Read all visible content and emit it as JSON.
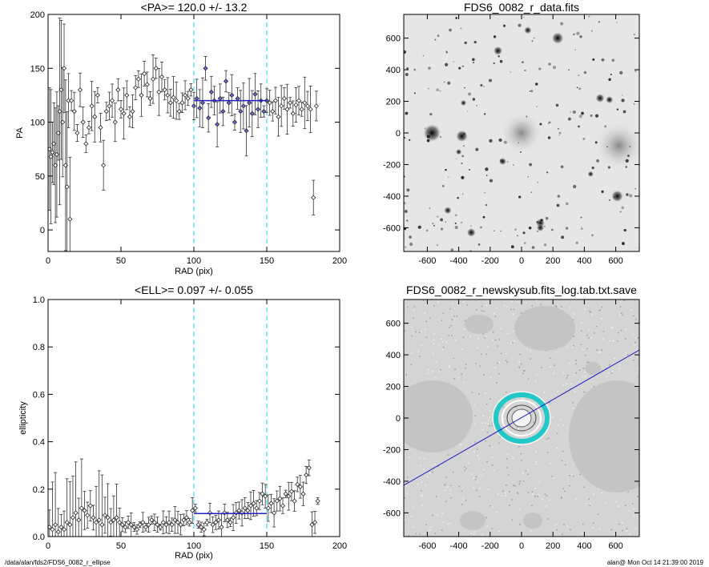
{
  "chart_data": [
    {
      "type": "scatter",
      "title": "<PA>= 120.0 +/-  13.2",
      "xlabel": "RAD (pix)",
      "ylabel": "PA",
      "xlim": [
        0,
        200
      ],
      "ylim": [
        -20,
        200
      ],
      "xticks": [
        0,
        50,
        100,
        150,
        200
      ],
      "yticks": [
        0,
        50,
        100,
        150,
        200
      ],
      "vlines": [
        100,
        150
      ],
      "fit_line": {
        "x": [
          100,
          150
        ],
        "y": 120.0
      },
      "series": [
        {
          "x": [
            1,
            2,
            3,
            4,
            5,
            6,
            7,
            8,
            9,
            10,
            11,
            12,
            13,
            14,
            15
          ],
          "y": [
            75,
            68,
            72,
            80,
            60,
            70,
            90,
            110,
            130,
            100,
            150,
            60,
            40,
            120,
            10
          ]
        },
        {
          "x": [
            16,
            18,
            20,
            22,
            24,
            26,
            28,
            30,
            32,
            34,
            36,
            38,
            40,
            42,
            44,
            46,
            48,
            50,
            52,
            54,
            56,
            58,
            60,
            62,
            64,
            66,
            68,
            70,
            72,
            74,
            76,
            78,
            80,
            82,
            84,
            86,
            88,
            90,
            92,
            94,
            96,
            98
          ],
          "y": [
            120,
            110,
            90,
            130,
            100,
            80,
            95,
            115,
            105,
            125,
            95,
            60,
            110,
            115,
            120,
            100,
            130,
            112,
            108,
            125,
            105,
            110,
            132,
            140,
            125,
            145,
            135,
            122,
            140,
            150,
            128,
            142,
            130,
            125,
            118,
            123,
            120,
            110,
            118,
            125,
            122,
            130
          ]
        },
        {
          "x": [
            100,
            102,
            104,
            106,
            108,
            110,
            112,
            114,
            116,
            118,
            120,
            122,
            124,
            126,
            128,
            130,
            132,
            134,
            136,
            138,
            140,
            142,
            144,
            146,
            148,
            150
          ],
          "y": [
            115,
            122,
            113,
            118,
            150,
            104,
            128,
            120,
            98,
            122,
            110,
            138,
            118,
            125,
            100,
            122,
            110,
            115,
            92,
            118,
            108,
            126,
            112,
            120,
            110,
            120
          ]
        },
        {
          "x": [
            152,
            154,
            156,
            158,
            160,
            162,
            164,
            166,
            168,
            170,
            172,
            174,
            176,
            178,
            180,
            182,
            184
          ],
          "y": [
            118,
            110,
            120,
            105,
            115,
            122,
            112,
            118,
            108,
            116,
            120,
            112,
            118,
            115,
            112,
            30,
            115
          ]
        }
      ]
    },
    {
      "type": "heatmap",
      "title": "FDS6_0082_r_data.fits",
      "xlim": [
        -750,
        750
      ],
      "ylim": [
        -750,
        750
      ],
      "xticks": [
        -600,
        -400,
        -200,
        0,
        200,
        400,
        600
      ],
      "yticks": [
        -600,
        -400,
        -200,
        0,
        200,
        400,
        600
      ]
    },
    {
      "type": "scatter",
      "title": "<ELL>= 0.097 +/-  0.055",
      "xlabel": "RAD (pix)",
      "ylabel": "ellipticity",
      "xlim": [
        0,
        200
      ],
      "ylim": [
        0,
        1.0
      ],
      "xticks": [
        0,
        50,
        100,
        150,
        200
      ],
      "yticks": [
        0.0,
        0.2,
        0.4,
        0.6,
        0.8,
        1.0
      ],
      "vlines": [
        100,
        150
      ],
      "fit_line": {
        "x": [
          100,
          150
        ],
        "y": 0.097
      },
      "series": [
        {
          "x": [
            1,
            3,
            5,
            7,
            9,
            11,
            13,
            15,
            17,
            19,
            21,
            23,
            25,
            27,
            29,
            31,
            33,
            35,
            37,
            39,
            41,
            43,
            45,
            47,
            49
          ],
          "y": [
            0.04,
            0.03,
            0.05,
            0.02,
            0.04,
            0.03,
            0.06,
            0.05,
            0.08,
            0.1,
            0.07,
            0.12,
            0.11,
            0.09,
            0.13,
            0.08,
            0.06,
            0.07,
            0.05,
            0.09,
            0.08,
            0.06,
            0.07,
            0.08,
            0.06
          ]
        },
        {
          "x": [
            51,
            53,
            55,
            57,
            59,
            61,
            63,
            65,
            67,
            69,
            71,
            73,
            75,
            77,
            79,
            81,
            83,
            85,
            87,
            89,
            91,
            93,
            95,
            97,
            99
          ],
          "y": [
            0.05,
            0.04,
            0.06,
            0.05,
            0.04,
            0.03,
            0.05,
            0.06,
            0.04,
            0.05,
            0.07,
            0.06,
            0.05,
            0.04,
            0.06,
            0.05,
            0.06,
            0.05,
            0.07,
            0.06,
            0.05,
            0.07,
            0.08,
            0.06,
            0.11
          ]
        },
        {
          "x": [
            101,
            103,
            105,
            107,
            109,
            111,
            113,
            115,
            117,
            119,
            121,
            123,
            125,
            127,
            129,
            131,
            133,
            135,
            137,
            139,
            141,
            143,
            145,
            147,
            149
          ],
          "y": [
            0.12,
            0.05,
            0.04,
            0.03,
            0.06,
            0.1,
            0.05,
            0.06,
            0.07,
            0.04,
            0.1,
            0.07,
            0.06,
            0.08,
            0.1,
            0.11,
            0.1,
            0.12,
            0.11,
            0.13,
            0.14,
            0.12,
            0.15,
            0.18,
            0.17
          ]
        },
        {
          "x": [
            151,
            153,
            155,
            157,
            159,
            161,
            163,
            165,
            167,
            169,
            171,
            173,
            175,
            177,
            179,
            181,
            183,
            185
          ],
          "y": [
            0.12,
            0.14,
            0.1,
            0.15,
            0.16,
            0.13,
            0.18,
            0.17,
            0.19,
            0.15,
            0.22,
            0.21,
            0.18,
            0.26,
            0.29,
            0.05,
            0.06,
            0.15
          ]
        }
      ]
    },
    {
      "type": "heatmap",
      "title": "FDS6_0082_r_newskysub.fits_log.tab.txt.save",
      "xlim": [
        -750,
        750
      ],
      "ylim": [
        -750,
        750
      ],
      "xticks": [
        -600,
        -400,
        -200,
        0,
        200,
        400,
        600
      ],
      "yticks": [
        -600,
        -400,
        -200,
        0,
        200,
        400,
        600
      ]
    }
  ],
  "footer": {
    "left": "/data/alan/fds2/FDS6_0082_r_ellipse",
    "right": "alan@  Mon Oct 14 21:39:00 2019"
  }
}
